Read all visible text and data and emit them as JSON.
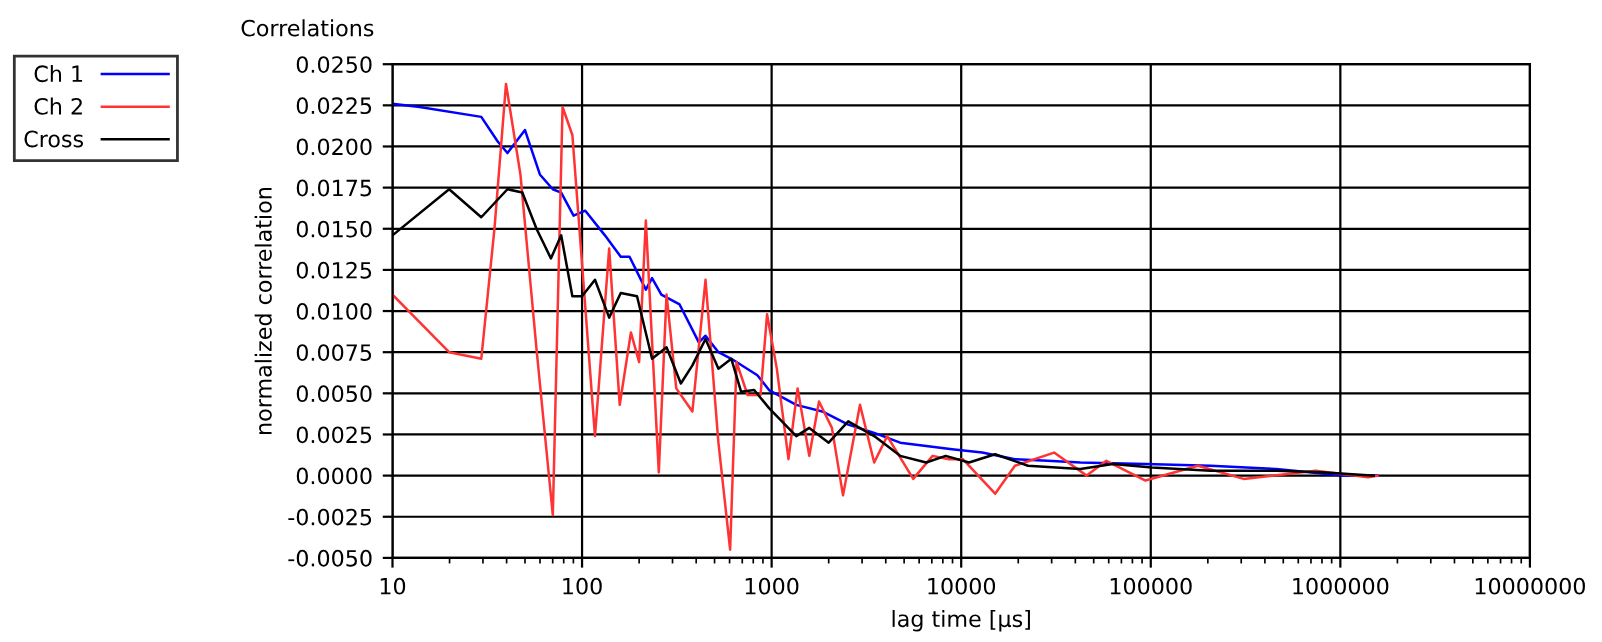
{
  "chart_data": {
    "type": "line",
    "title": "Correlations",
    "xlabel": "lag time [µs]",
    "ylabel": "normalized correlation",
    "log": "x",
    "grid": true,
    "legend": "top left",
    "marker": "none",
    "line_style": "solid",
    "xlim": [
      10,
      10000000
    ],
    "xticks": [
      10,
      100,
      1000,
      10000,
      100000,
      1000000,
      10000000
    ],
    "ylim": [
      -0.005,
      0.025
    ],
    "yticks": [
      {
        "value": -0.005,
        "label": "-0.0050"
      },
      {
        "value": -0.0025,
        "label": "-0.0025"
      },
      {
        "value": 0,
        "label": "0.0000"
      },
      {
        "value": 0.0025,
        "label": "0.0025"
      },
      {
        "value": 0.005,
        "label": "0.0050"
      },
      {
        "value": 0.0075,
        "label": "0.0075"
      },
      {
        "value": 0.01,
        "label": "0.0100"
      },
      {
        "value": 0.0125,
        "label": "0.0125"
      },
      {
        "value": 0.015,
        "label": "0.0150"
      },
      {
        "value": 0.0175,
        "label": "0.0175"
      },
      {
        "value": 0.02,
        "label": "0.0200"
      },
      {
        "value": 0.0225,
        "label": "0.0225"
      },
      {
        "value": 0.025,
        "label": "0.0250"
      }
    ],
    "series": [
      {
        "name": "Ch 1",
        "color": "#0000ff",
        "x": [
          10,
          13.9,
          29.4,
          35.9,
          40.4,
          50,
          59.9,
          70.1,
          77.6,
          90.2,
          104,
          132,
          160,
          178,
          217,
          234,
          262,
          327,
          413,
          448,
          524,
          613,
          841,
          969,
          1349,
          1850,
          2535,
          3475,
          4765,
          6535,
          8950,
          12900,
          19200,
          28500,
          42500,
          93800,
          207000,
          459000,
          1020000,
          1570000
        ],
        "values": [
          0.0226,
          0.0224,
          0.0218,
          0.0203,
          0.0196,
          0.021,
          0.0183,
          0.0174,
          0.0172,
          0.0158,
          0.0161,
          0.0146,
          0.0133,
          0.0133,
          0.0113,
          0.012,
          0.011,
          0.0104,
          0.0081,
          0.0085,
          0.0075,
          0.0071,
          0.0061,
          0.0052,
          0.0043,
          0.0039,
          0.0031,
          0.0026,
          0.002,
          0.0018,
          0.0016,
          0.0014,
          0.001,
          0.0009,
          0.0008,
          0.0007,
          0.0006,
          0.0004,
          0.0,
          0.0
        ]
      },
      {
        "name": "Ch 2",
        "color": "#ff3333",
        "x": [
          10,
          19.9,
          29.4,
          34.5,
          39.7,
          47.3,
          57.5,
          70.1,
          78.9,
          88.9,
          117,
          139,
          158,
          181,
          200,
          217,
          254,
          279,
          314,
          382,
          448,
          524,
          604,
          653,
          747,
          874,
          946,
          1065,
          1227,
          1371,
          1580,
          1778,
          2080,
          2380,
          2925,
          3475,
          4070,
          5585,
          7065,
          8610,
          10200,
          15100,
          19200,
          30900,
          45900,
          58300,
          93800,
          177000,
          309000,
          740000,
          1400000,
          1570000
        ],
        "values": [
          0.011,
          0.0075,
          0.0071,
          0.015,
          0.0238,
          0.0183,
          0.0077,
          -0.0024,
          0.0224,
          0.0207,
          0.0024,
          0.0138,
          0.0043,
          0.0087,
          0.0069,
          0.0155,
          0.0002,
          0.011,
          0.0053,
          0.0039,
          0.0119,
          0.002,
          -0.0045,
          0.0069,
          0.0049,
          0.0049,
          0.0098,
          0.0065,
          0.001,
          0.0053,
          0.0012,
          0.0045,
          0.0029,
          -0.0012,
          0.0043,
          0.0008,
          0.0024,
          -0.0002,
          0.0012,
          0.001,
          0.001,
          -0.0011,
          0.0006,
          0.0014,
          0.0,
          0.0009,
          -0.0003,
          0.0006,
          -0.0002,
          0.0003,
          -0.0001,
          0.0
        ]
      },
      {
        "name": "Cross",
        "color": "#000000",
        "x": [
          10,
          19.9,
          29.4,
          40.4,
          48.4,
          57.5,
          68.5,
          77.6,
          88.9,
          100,
          117,
          139,
          160,
          195,
          234,
          279,
          332,
          382,
          448,
          524,
          613,
          690,
          809,
          969,
          1349,
          1580,
          2000,
          2535,
          3475,
          4765,
          6535,
          8280,
          11000,
          15100,
          22500,
          42500,
          63100,
          101600,
          207000,
          459000,
          800000,
          1500000
        ],
        "values": [
          0.0146,
          0.0174,
          0.0157,
          0.0174,
          0.0172,
          0.015,
          0.0132,
          0.0146,
          0.0109,
          0.0109,
          0.0119,
          0.0096,
          0.0111,
          0.0109,
          0.0071,
          0.0078,
          0.0056,
          0.0067,
          0.0083,
          0.0065,
          0.0071,
          0.0051,
          0.0052,
          0.0041,
          0.0024,
          0.0029,
          0.002,
          0.0033,
          0.0024,
          0.0012,
          0.0008,
          0.0012,
          0.0008,
          0.0013,
          0.0006,
          0.0004,
          0.0007,
          0.0005,
          0.0003,
          0.0003,
          0.0002,
          0.0
        ]
      }
    ]
  }
}
